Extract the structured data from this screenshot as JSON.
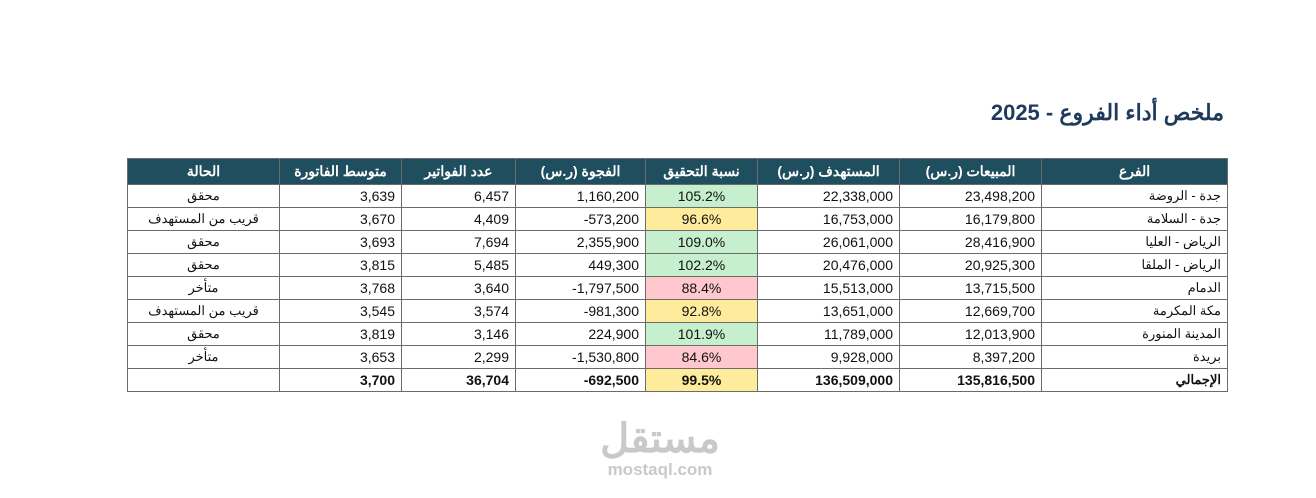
{
  "title": "ملخص أداء الفروع - 2025",
  "table": {
    "headers": [
      "الفرع",
      "المبيعات (ر.س)",
      "المستهدف (ر.س)",
      "نسبة التحقيق",
      "الفجوة (ر.س)",
      "عدد الفواتير",
      "متوسط الفاتورة",
      "الحالة"
    ],
    "rows": [
      [
        "جدة - الروضة",
        "23,498,200",
        "22,338,000",
        "105.2%",
        "1,160,200",
        "6,457",
        "3,639",
        "محقق"
      ],
      [
        "جدة - السلامة",
        "16,179,800",
        "16,753,000",
        "96.6%",
        "-573,200",
        "4,409",
        "3,670",
        "قريب من المستهدف"
      ],
      [
        "الرياض - العليا",
        "28,416,900",
        "26,061,000",
        "109.0%",
        "2,355,900",
        "7,694",
        "3,693",
        "محقق"
      ],
      [
        "الرياض - الملقا",
        "20,925,300",
        "20,476,000",
        "102.2%",
        "449,300",
        "5,485",
        "3,815",
        "محقق"
      ],
      [
        "الدمام",
        "13,715,500",
        "15,513,000",
        "88.4%",
        "-1,797,500",
        "3,640",
        "3,768",
        "متأخر"
      ],
      [
        "مكة المكرمة",
        "12,669,700",
        "13,651,000",
        "92.8%",
        "-981,300",
        "3,574",
        "3,545",
        "قريب من المستهدف"
      ],
      [
        "المدينة المنورة",
        "12,013,900",
        "11,789,000",
        "101.9%",
        "224,900",
        "3,146",
        "3,819",
        "محقق"
      ],
      [
        "بريدة",
        "8,397,200",
        "9,928,000",
        "84.6%",
        "-1,530,800",
        "2,299",
        "3,653",
        "متأخر"
      ]
    ],
    "total": [
      "الإجمالي",
      "135,816,500",
      "136,509,000",
      "99.5%",
      "-692,500",
      "36,704",
      "3,700"
    ],
    "achievement_colors": [
      "#c6efce",
      "#ffeb9c",
      "#c6efce",
      "#c6efce",
      "#ffc7ce",
      "#ffeb9c",
      "#c6efce",
      "#ffc7ce"
    ],
    "total_color": "#ffeb9c"
  },
  "watermark": {
    "arabic": "مستقل",
    "latin": "mostaql.com"
  }
}
